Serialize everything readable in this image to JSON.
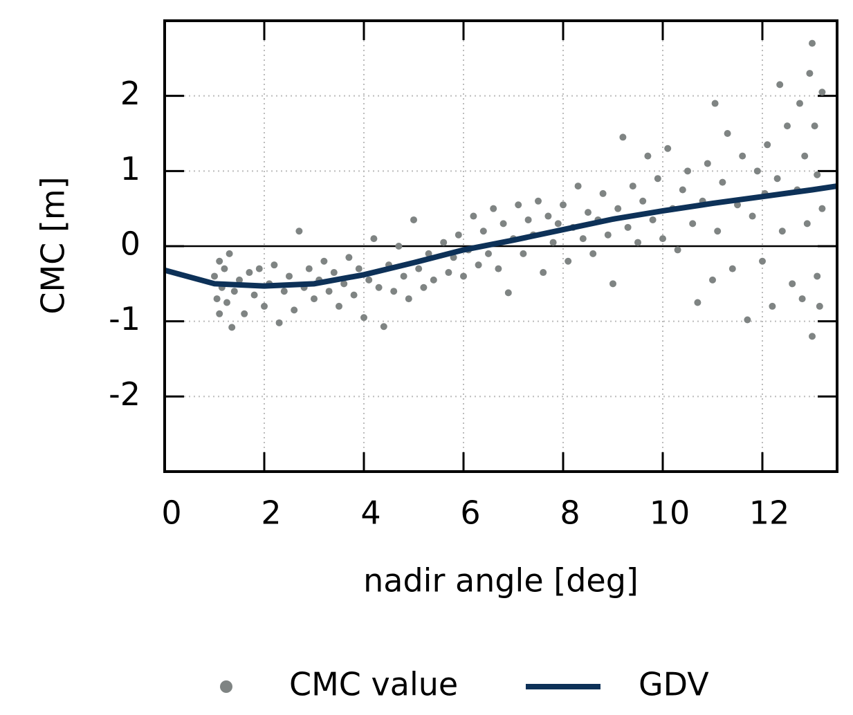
{
  "chart_data": {
    "type": "scatter",
    "xlabel": "nadir angle [deg]",
    "ylabel": "CMC [m]",
    "xlim": [
      0,
      13.5
    ],
    "ylim": [
      -3,
      3
    ],
    "xticks": [
      0,
      2,
      4,
      6,
      8,
      10,
      12
    ],
    "yticks": [
      -2,
      -1,
      0,
      1,
      2
    ],
    "grid": true,
    "zero_line": true,
    "legend": "bottom",
    "series": [
      {
        "name": "CMC value",
        "type": "scatter",
        "color": "#7f8483",
        "x": [
          1.0,
          1.05,
          1.1,
          1.1,
          1.15,
          1.2,
          1.25,
          1.3,
          1.35,
          1.4,
          1.5,
          1.6,
          1.7,
          1.8,
          1.9,
          2.0,
          2.1,
          2.2,
          2.3,
          2.4,
          2.5,
          2.6,
          2.7,
          2.8,
          2.9,
          3.0,
          3.1,
          3.2,
          3.3,
          3.4,
          3.5,
          3.6,
          3.7,
          3.8,
          3.9,
          4.0,
          4.1,
          4.2,
          4.3,
          4.4,
          4.5,
          4.6,
          4.7,
          4.8,
          4.9,
          5.0,
          5.1,
          5.2,
          5.3,
          5.4,
          5.6,
          5.7,
          5.8,
          5.9,
          6.0,
          6.1,
          6.2,
          6.3,
          6.4,
          6.5,
          6.6,
          6.7,
          6.8,
          6.9,
          7.0,
          7.1,
          7.2,
          7.3,
          7.4,
          7.5,
          7.6,
          7.7,
          7.8,
          7.9,
          8.0,
          8.1,
          8.2,
          8.3,
          8.4,
          8.5,
          8.6,
          8.7,
          8.8,
          8.9,
          9.0,
          9.1,
          9.2,
          9.3,
          9.4,
          9.5,
          9.6,
          9.7,
          9.8,
          9.9,
          10.0,
          10.1,
          10.2,
          10.3,
          10.4,
          10.5,
          10.6,
          10.7,
          10.8,
          10.9,
          11.0,
          11.05,
          11.1,
          11.2,
          11.3,
          11.4,
          11.5,
          11.6,
          11.7,
          11.8,
          11.9,
          12.0,
          12.05,
          12.1,
          12.2,
          12.3,
          12.35,
          12.4,
          12.5,
          12.6,
          12.7,
          12.75,
          12.8,
          12.85,
          12.9,
          12.95,
          13.0,
          13.0,
          13.05,
          13.1,
          13.1,
          13.15,
          13.2,
          13.2
        ],
        "values": [
          -0.4,
          -0.7,
          -0.2,
          -0.9,
          -0.55,
          -0.3,
          -0.75,
          -0.1,
          -1.08,
          -0.6,
          -0.45,
          -0.9,
          -0.35,
          -0.65,
          -0.3,
          -0.8,
          -0.5,
          -0.25,
          -1.02,
          -0.6,
          -0.4,
          -0.85,
          0.2,
          -0.55,
          -0.3,
          -0.7,
          -0.45,
          -0.2,
          -0.6,
          -0.35,
          -0.8,
          -0.5,
          -0.15,
          -0.65,
          -0.3,
          -0.95,
          -0.45,
          0.1,
          -0.55,
          -1.07,
          -0.25,
          -0.6,
          0.0,
          -0.4,
          -0.7,
          0.35,
          -0.3,
          -0.55,
          -0.1,
          -0.45,
          0.05,
          -0.35,
          -0.15,
          0.15,
          -0.4,
          -0.05,
          0.4,
          -0.25,
          0.2,
          -0.1,
          0.5,
          -0.3,
          0.3,
          -0.62,
          0.1,
          0.55,
          -0.1,
          0.35,
          0.15,
          0.6,
          -0.35,
          0.4,
          0.05,
          0.3,
          0.55,
          -0.2,
          0.25,
          0.8,
          0.1,
          0.45,
          -0.1,
          0.35,
          0.7,
          0.15,
          -0.5,
          0.5,
          1.45,
          0.25,
          0.8,
          0.05,
          0.6,
          1.2,
          0.35,
          0.9,
          0.1,
          1.3,
          0.5,
          -0.05,
          0.75,
          1.0,
          0.3,
          -0.75,
          0.6,
          1.1,
          -0.45,
          1.9,
          0.2,
          0.85,
          1.5,
          -0.3,
          0.55,
          1.2,
          -0.98,
          0.4,
          1.0,
          -0.2,
          0.7,
          1.35,
          -0.8,
          0.9,
          2.15,
          0.2,
          1.6,
          -0.5,
          0.75,
          1.9,
          -0.7,
          1.2,
          0.3,
          2.3,
          2.7,
          -1.2,
          1.6,
          -0.4,
          0.95,
          -0.8,
          2.05,
          0.5
        ]
      },
      {
        "name": "GDV",
        "type": "line",
        "color": "#0d3158",
        "x": [
          0,
          1,
          2,
          3,
          4,
          5,
          6,
          7,
          8,
          9,
          10,
          11,
          12,
          13,
          13.5
        ],
        "values": [
          -0.32,
          -0.5,
          -0.53,
          -0.5,
          -0.38,
          -0.22,
          -0.05,
          0.08,
          0.22,
          0.36,
          0.47,
          0.57,
          0.66,
          0.75,
          0.8
        ]
      }
    ]
  }
}
